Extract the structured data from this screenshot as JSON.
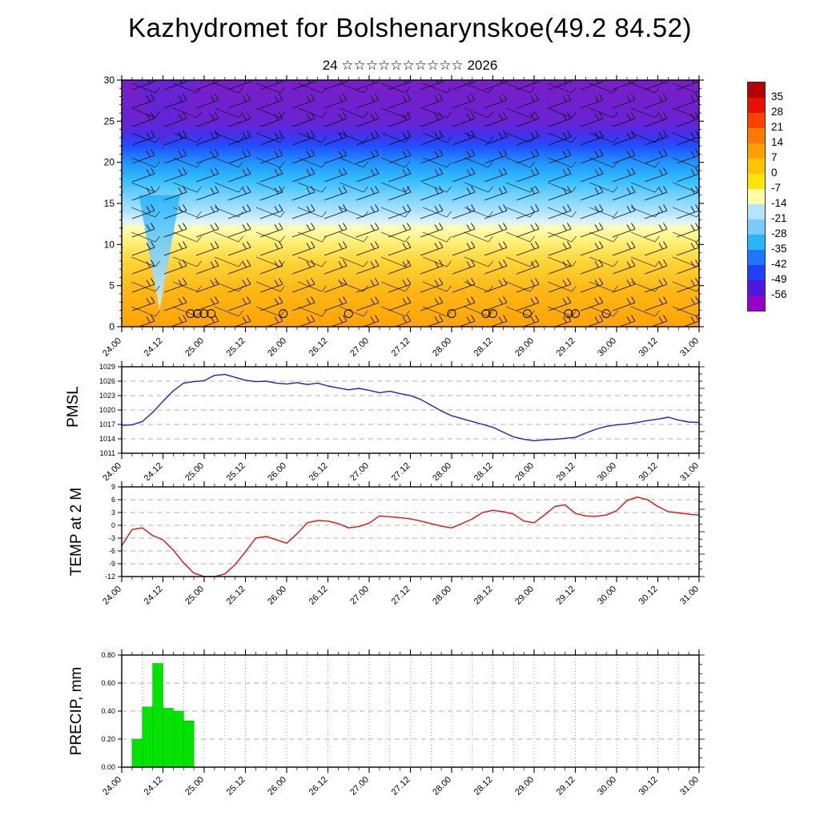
{
  "title": "Kazhydromet for Bolshenarynskoe(49.2 84.52)",
  "subtitle": "24 ☆☆☆☆☆☆☆☆☆☆ 2026",
  "time_axis": {
    "tick_labels": [
      "24.00",
      "24.12",
      "25.00",
      "25.12",
      "26.00",
      "26.12",
      "27.00",
      "27.12",
      "28.00",
      "28.12",
      "29.00",
      "29.12",
      "30.00",
      "30.12",
      "31.00"
    ],
    "hours_span": 168,
    "minor_tick_hours": 3,
    "major_tick_hours": 12
  },
  "chart_data": [
    {
      "type": "heatmap",
      "name": "temperature-wind-cross-section",
      "description": "Time-height cross-section: shaded temperature (deg C) with wind barbs overlaid",
      "ylim": [
        0,
        30
      ],
      "y_ticks": [
        "0",
        "5",
        "10",
        "15",
        "20",
        "25",
        "30"
      ],
      "grid": false,
      "colorbar_boundary_labels": [
        "35",
        "28",
        "21",
        "14",
        "7",
        "0",
        "-7",
        "-14",
        "-21",
        "-28",
        "-35",
        "-42",
        "-49",
        "-56"
      ],
      "colorbar_colors_top_to_bottom": [
        "#b80000",
        "#e81000",
        "#ff4000",
        "#ff7800",
        "#ffa000",
        "#ffc400",
        "#ffe400",
        "#fffca4",
        "#b4e4ff",
        "#78ccff",
        "#28b4ff",
        "#1e78ff",
        "#2040ff",
        "#5018dc",
        "#9600c8"
      ],
      "field_gradient_stops": [
        {
          "pos": 0.0,
          "color": "#7a1ec8"
        },
        {
          "pos": 0.17,
          "color": "#6a22d2"
        },
        {
          "pos": 0.22,
          "color": "#4530e8"
        },
        {
          "pos": 0.27,
          "color": "#2050ff"
        },
        {
          "pos": 0.33,
          "color": "#2090ff"
        },
        {
          "pos": 0.4,
          "color": "#30bcff"
        },
        {
          "pos": 0.47,
          "color": "#74d2ff"
        },
        {
          "pos": 0.53,
          "color": "#abe2ff"
        },
        {
          "pos": 0.57,
          "color": "#d9f1ff"
        },
        {
          "pos": 0.6,
          "color": "#fdfdb4"
        },
        {
          "pos": 0.66,
          "color": "#ffef72"
        },
        {
          "pos": 0.74,
          "color": "#ffd435"
        },
        {
          "pos": 0.85,
          "color": "#ffb815"
        },
        {
          "pos": 1.0,
          "color": "#ffa305"
        }
      ],
      "calm_marker_hours": [
        20,
        22,
        24,
        26,
        47,
        66,
        96,
        106,
        108,
        118,
        130,
        132,
        141
      ],
      "calm_marker_level": 1.6
    },
    {
      "type": "line",
      "label": "PMSL",
      "color": "#2222bb",
      "ylim": [
        1011,
        1029
      ],
      "y_ticks": [
        "1029",
        "1026",
        "1023",
        "1020",
        "1017",
        "1014",
        "1011"
      ],
      "x_start_hours": 0,
      "x_step_hours": 3,
      "values": [
        1016.8,
        1016.9,
        1017.6,
        1019.5,
        1021.8,
        1024.0,
        1025.6,
        1025.9,
        1026.1,
        1027.2,
        1027.4,
        1026.8,
        1026.2,
        1025.9,
        1026.0,
        1025.6,
        1025.4,
        1025.7,
        1025.3,
        1025.6,
        1025.0,
        1024.6,
        1024.2,
        1024.5,
        1024.1,
        1023.6,
        1023.9,
        1023.4,
        1023.0,
        1022.2,
        1021.0,
        1019.8,
        1018.8,
        1018.2,
        1017.6,
        1017.0,
        1016.4,
        1015.4,
        1014.4,
        1013.9,
        1013.6,
        1013.8,
        1013.9,
        1014.1,
        1014.3,
        1015.2,
        1016.0,
        1016.6,
        1016.9,
        1017.1,
        1017.4,
        1017.8,
        1018.1,
        1018.5,
        1017.9,
        1017.5,
        1017.4
      ]
    },
    {
      "type": "line",
      "label": "TEMP at 2 M",
      "color": "#dd1111",
      "ylim": [
        -12,
        9
      ],
      "y_ticks": [
        "9",
        "6",
        "3",
        "0",
        "-3",
        "-6",
        "-9",
        "-12"
      ],
      "x_start_hours": 0,
      "x_step_hours": 3,
      "values": [
        -4.8,
        -1.0,
        -0.6,
        -2.4,
        -3.4,
        -5.8,
        -8.8,
        -11.2,
        -12.0,
        -12.0,
        -11.4,
        -9.2,
        -6.2,
        -3.0,
        -2.6,
        -3.4,
        -4.2,
        -2.0,
        0.6,
        1.1,
        1.0,
        0.4,
        -0.6,
        -0.3,
        0.5,
        2.2,
        2.0,
        1.8,
        1.5,
        1.0,
        0.4,
        -0.2,
        -0.6,
        0.4,
        1.5,
        3.0,
        3.5,
        3.2,
        2.6,
        1.0,
        0.6,
        2.4,
        4.4,
        4.8,
        2.8,
        2.2,
        2.1,
        2.4,
        3.4,
        5.8,
        6.6,
        6.0,
        4.4,
        3.2,
        2.9,
        2.6,
        2.4
      ]
    },
    {
      "type": "bar",
      "label": "PRECIP, mm",
      "color": "#00e400",
      "ylim": [
        0,
        0.8
      ],
      "y_ticks": [
        "0.80",
        "0.60",
        "0.40",
        "0.20",
        "0.00"
      ],
      "bar_width_hours": 3,
      "bars": [
        {
          "hour": 3,
          "value": 0.2
        },
        {
          "hour": 6,
          "value": 0.43
        },
        {
          "hour": 9,
          "value": 0.74
        },
        {
          "hour": 12,
          "value": 0.42
        },
        {
          "hour": 15,
          "value": 0.4
        },
        {
          "hour": 18,
          "value": 0.33
        }
      ]
    }
  ]
}
